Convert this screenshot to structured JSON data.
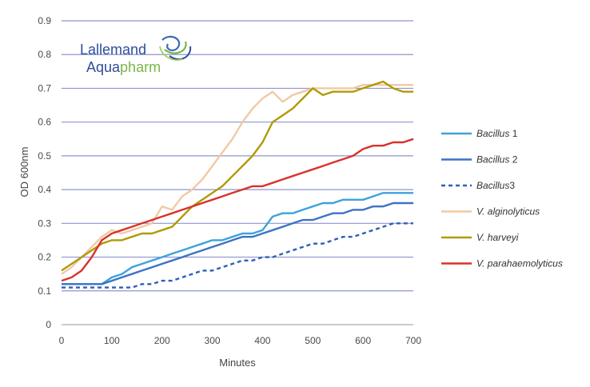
{
  "logo": {
    "line1": "Lallemand",
    "line2_main": "Aqua",
    "line2_accent": "pharm",
    "colors": {
      "blue": "#2e4d9b",
      "green": "#7ab648"
    }
  },
  "chart_data": {
    "type": "line",
    "title": "",
    "xlabel": "Minutes",
    "ylabel": "OD 600nm",
    "xlim": [
      0,
      700
    ],
    "ylim": [
      0,
      0.9
    ],
    "x_ticks": [
      "0",
      "100",
      "200",
      "300",
      "400",
      "500",
      "600",
      "700"
    ],
    "y_ticks": [
      "0",
      "0.1",
      "0.2",
      "0.3",
      "0.4",
      "0.5",
      "0.6",
      "0.7",
      "0.8",
      "0.9"
    ],
    "grid": "horizontal",
    "legend_position": "right",
    "series": [
      {
        "name_italic": "Bacillus",
        "name_rest": " 1",
        "color": "#3fa2dd",
        "dash": "solid",
        "x": [
          0,
          20,
          40,
          60,
          80,
          100,
          120,
          140,
          160,
          180,
          200,
          220,
          240,
          260,
          280,
          300,
          320,
          340,
          360,
          380,
          400,
          420,
          440,
          460,
          480,
          500,
          520,
          540,
          560,
          580,
          600,
          620,
          640,
          660,
          680,
          700
        ],
        "y": [
          0.12,
          0.12,
          0.12,
          0.12,
          0.12,
          0.14,
          0.15,
          0.17,
          0.18,
          0.19,
          0.2,
          0.21,
          0.22,
          0.23,
          0.24,
          0.25,
          0.25,
          0.26,
          0.27,
          0.27,
          0.28,
          0.32,
          0.33,
          0.33,
          0.34,
          0.35,
          0.36,
          0.36,
          0.37,
          0.37,
          0.37,
          0.38,
          0.39,
          0.39,
          0.39,
          0.39
        ]
      },
      {
        "name_italic": "Bacillus",
        "name_rest": " 2",
        "color": "#3c73c4",
        "dash": "solid",
        "x": [
          0,
          20,
          40,
          60,
          80,
          100,
          120,
          140,
          160,
          180,
          200,
          220,
          240,
          260,
          280,
          300,
          320,
          340,
          360,
          380,
          400,
          420,
          440,
          460,
          480,
          500,
          520,
          540,
          560,
          580,
          600,
          620,
          640,
          660,
          680,
          700
        ],
        "y": [
          0.12,
          0.12,
          0.12,
          0.12,
          0.12,
          0.13,
          0.14,
          0.15,
          0.16,
          0.17,
          0.18,
          0.19,
          0.2,
          0.21,
          0.22,
          0.23,
          0.24,
          0.25,
          0.26,
          0.26,
          0.27,
          0.28,
          0.29,
          0.3,
          0.31,
          0.31,
          0.32,
          0.33,
          0.33,
          0.34,
          0.34,
          0.35,
          0.35,
          0.36,
          0.36,
          0.36
        ]
      },
      {
        "name_italic": "Bacillus",
        "name_rest": "3",
        "color": "#2f5fb8",
        "dash": "dashed",
        "x": [
          0,
          20,
          40,
          60,
          80,
          100,
          120,
          140,
          160,
          180,
          200,
          220,
          240,
          260,
          280,
          300,
          320,
          340,
          360,
          380,
          400,
          420,
          440,
          460,
          480,
          500,
          520,
          540,
          560,
          580,
          600,
          620,
          640,
          660,
          680,
          700
        ],
        "y": [
          0.11,
          0.11,
          0.11,
          0.11,
          0.11,
          0.11,
          0.11,
          0.11,
          0.12,
          0.12,
          0.13,
          0.13,
          0.14,
          0.15,
          0.16,
          0.16,
          0.17,
          0.18,
          0.19,
          0.19,
          0.2,
          0.2,
          0.21,
          0.22,
          0.23,
          0.24,
          0.24,
          0.25,
          0.26,
          0.26,
          0.27,
          0.28,
          0.29,
          0.3,
          0.3,
          0.3
        ]
      },
      {
        "name_italic": "V. alginolyticus",
        "name_rest": "",
        "color": "#f2c9a4",
        "dash": "solid",
        "x": [
          0,
          20,
          40,
          60,
          80,
          100,
          120,
          140,
          160,
          180,
          200,
          220,
          240,
          260,
          280,
          300,
          320,
          340,
          360,
          380,
          400,
          420,
          440,
          460,
          480,
          500,
          520,
          540,
          560,
          580,
          600,
          620,
          640,
          660,
          680,
          700
        ],
        "y": [
          0.15,
          0.17,
          0.2,
          0.23,
          0.26,
          0.28,
          0.27,
          0.28,
          0.29,
          0.3,
          0.35,
          0.34,
          0.38,
          0.4,
          0.43,
          0.47,
          0.51,
          0.55,
          0.6,
          0.64,
          0.67,
          0.69,
          0.66,
          0.68,
          0.69,
          0.7,
          0.7,
          0.7,
          0.7,
          0.7,
          0.71,
          0.71,
          0.71,
          0.71,
          0.71,
          0.71
        ]
      },
      {
        "name_italic": "V. harveyi",
        "name_rest": "",
        "color": "#b09a08",
        "dash": "solid",
        "x": [
          0,
          20,
          40,
          60,
          80,
          100,
          120,
          140,
          160,
          180,
          200,
          220,
          240,
          260,
          280,
          300,
          320,
          340,
          360,
          380,
          400,
          420,
          440,
          460,
          480,
          500,
          520,
          540,
          560,
          580,
          600,
          620,
          640,
          660,
          680,
          700
        ],
        "y": [
          0.16,
          0.18,
          0.2,
          0.22,
          0.24,
          0.25,
          0.25,
          0.26,
          0.27,
          0.27,
          0.28,
          0.29,
          0.32,
          0.35,
          0.37,
          0.39,
          0.41,
          0.44,
          0.47,
          0.5,
          0.54,
          0.6,
          0.62,
          0.64,
          0.67,
          0.7,
          0.68,
          0.69,
          0.69,
          0.69,
          0.7,
          0.71,
          0.72,
          0.7,
          0.69,
          0.69
        ]
      },
      {
        "name_italic": "V. parahaemolyticus",
        "name_rest": "",
        "color": "#d9322b",
        "dash": "solid",
        "x": [
          0,
          20,
          40,
          60,
          80,
          100,
          120,
          140,
          160,
          180,
          200,
          220,
          240,
          260,
          280,
          300,
          320,
          340,
          360,
          380,
          400,
          420,
          440,
          460,
          480,
          500,
          520,
          540,
          560,
          580,
          600,
          620,
          640,
          660,
          680,
          700
        ],
        "y": [
          0.13,
          0.14,
          0.16,
          0.2,
          0.25,
          0.27,
          0.28,
          0.29,
          0.3,
          0.31,
          0.32,
          0.33,
          0.34,
          0.35,
          0.36,
          0.37,
          0.38,
          0.39,
          0.4,
          0.41,
          0.41,
          0.42,
          0.43,
          0.44,
          0.45,
          0.46,
          0.47,
          0.48,
          0.49,
          0.5,
          0.52,
          0.53,
          0.53,
          0.54,
          0.54,
          0.55
        ]
      }
    ]
  }
}
